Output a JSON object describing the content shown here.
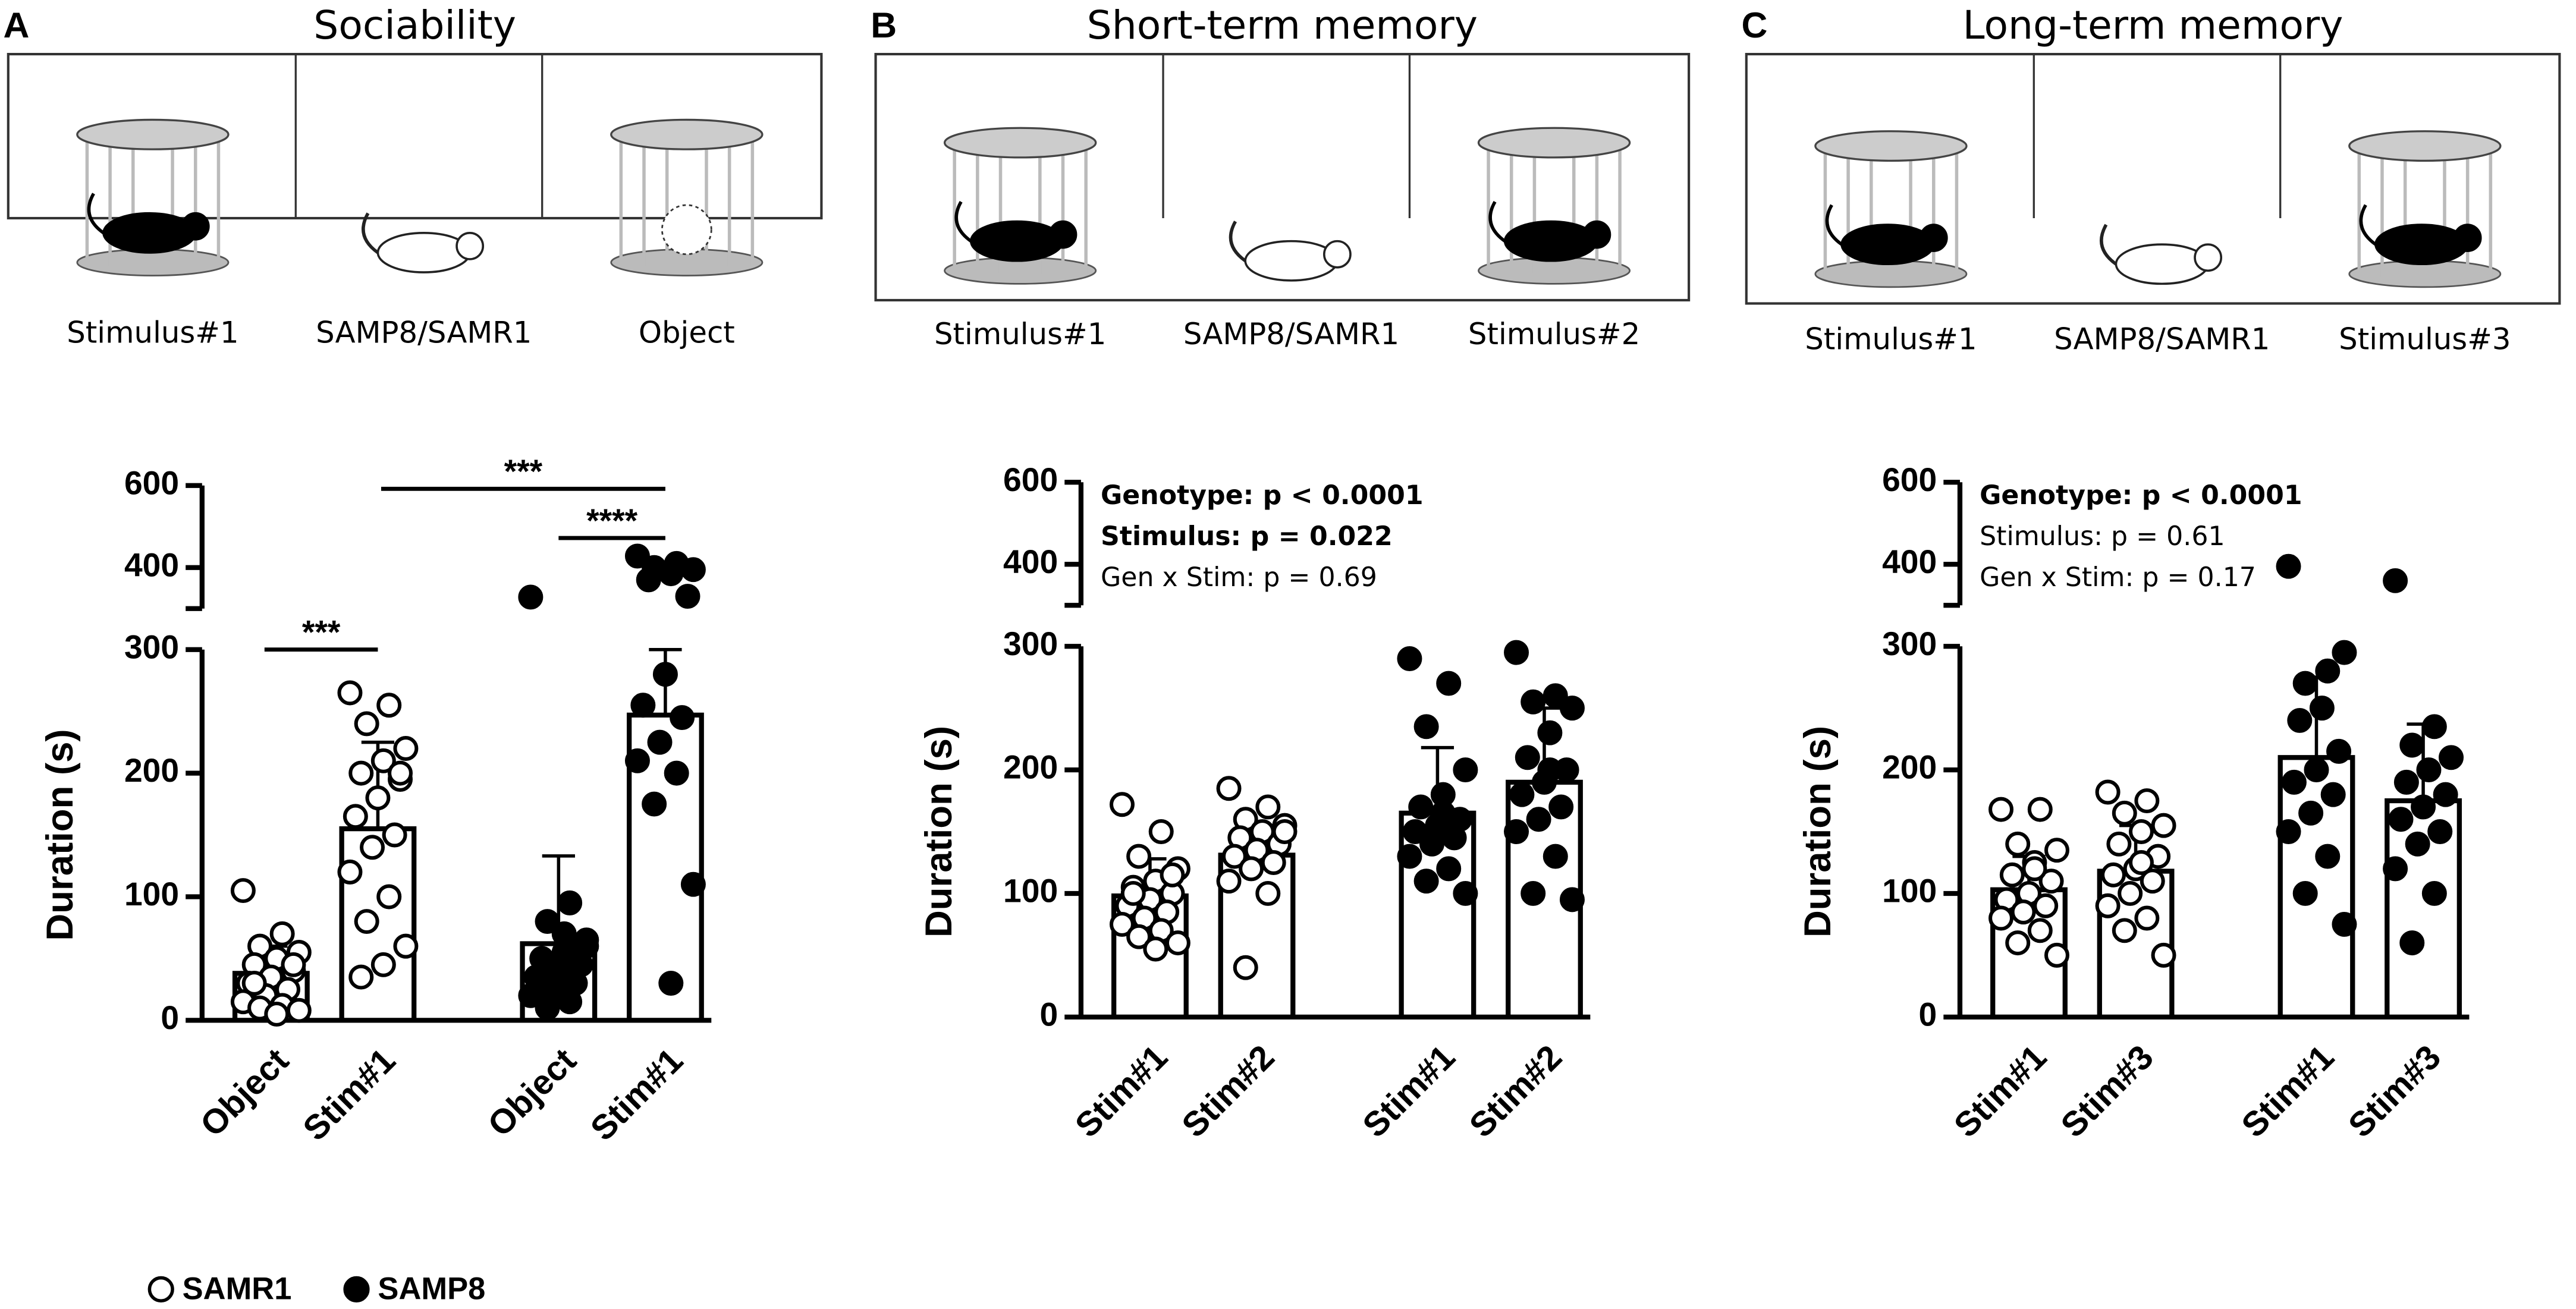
{
  "panels": [
    {
      "letter": "A",
      "title": "Sociability",
      "labels": [
        "Stimulus#1",
        "SAMP8/SAMR1",
        "Object"
      ]
    },
    {
      "letter": "B",
      "title": "Short-term memory",
      "labels": [
        "Stimulus#1",
        "SAMP8/SAMR1",
        "Stimulus#2"
      ]
    },
    {
      "letter": "C",
      "title": "Long-term memory",
      "labels": [
        "Stimulus#1",
        "SAMP8/SAMR1",
        "Stimulus#3"
      ]
    }
  ],
  "legend": [
    {
      "name": "SAMR1",
      "fill": "#ffffff"
    },
    {
      "name": "SAMP8",
      "fill": "#000000"
    }
  ],
  "chart_data": [
    {
      "type": "bar",
      "y_label": "Duration (s)",
      "categories": [
        "Object",
        "Stim#1",
        "Object",
        "Stim#1"
      ],
      "values": [
        38,
        155,
        62,
        247
      ],
      "errors": [
        22,
        70,
        71,
        53
      ],
      "point_fills": [
        "#ffffff",
        "#ffffff",
        "#000000",
        "#000000"
      ],
      "points": [
        [
          105,
          70,
          60,
          55,
          50,
          45,
          40,
          35,
          30,
          25,
          20,
          15,
          12,
          10,
          8,
          5,
          30,
          45
        ],
        [
          265,
          255,
          240,
          220,
          210,
          200,
          195,
          180,
          165,
          150,
          140,
          120,
          100,
          80,
          60,
          45,
          35,
          200
        ],
        [
          328,
          95,
          80,
          65,
          55,
          50,
          45,
          40,
          35,
          30,
          25,
          20,
          15,
          10,
          60,
          70
        ],
        [
          428,
          410,
          400,
          395,
          385,
          370,
          330,
          280,
          255,
          245,
          225,
          210,
          200,
          175,
          110,
          30
        ]
      ],
      "ylim": [
        0,
        300
      ],
      "yticks": [
        0,
        100,
        200,
        300
      ],
      "ylim_upper": [
        300,
        600
      ],
      "yticks_upper": [
        400,
        600
      ],
      "significance": [
        "***",
        "***",
        "****"
      ]
    },
    {
      "type": "bar",
      "y_label": "Duration (s)",
      "categories": [
        "Stim#1",
        "Stim#2",
        "Stim#1",
        "Stim#2"
      ],
      "values": [
        98,
        131,
        165,
        190
      ],
      "errors": [
        30,
        24,
        53,
        60
      ],
      "point_fills": [
        "#ffffff",
        "#ffffff",
        "#000000",
        "#000000"
      ],
      "points": [
        [
          172,
          150,
          130,
          120,
          110,
          105,
          100,
          95,
          90,
          85,
          80,
          75,
          70,
          65,
          60,
          55,
          100,
          115
        ],
        [
          185,
          170,
          160,
          155,
          150,
          145,
          140,
          135,
          130,
          125,
          120,
          110,
          100,
          40,
          150
        ],
        [
          290,
          270,
          235,
          200,
          180,
          170,
          160,
          155,
          150,
          145,
          140,
          130,
          120,
          110,
          100,
          165
        ],
        [
          295,
          260,
          255,
          250,
          230,
          210,
          200,
          190,
          180,
          170,
          160,
          150,
          130,
          100,
          95,
          200
        ]
      ],
      "ylim": [
        0,
        300
      ],
      "yticks": [
        0,
        100,
        200,
        300
      ],
      "ylim_upper": [
        300,
        600
      ],
      "yticks_upper": [
        400,
        600
      ],
      "stats": [
        {
          "text": "Genotype: p < 0.0001",
          "bold": true
        },
        {
          "text": "Stimulus: p = 0.022",
          "bold": true
        },
        {
          "text": "Gen x Stim: p = 0.69",
          "bold": false
        }
      ]
    },
    {
      "type": "bar",
      "y_label": "Duration (s)",
      "categories": [
        "Stim#1",
        "Stim#3",
        "Stim#1",
        "Stim#3"
      ],
      "values": [
        103,
        118,
        210,
        175
      ],
      "errors": [
        27,
        37,
        65,
        62
      ],
      "point_fills": [
        "#ffffff",
        "#ffffff",
        "#000000",
        "#000000"
      ],
      "points": [
        [
          168,
          168,
          140,
          135,
          125,
          115,
          110,
          100,
          95,
          90,
          85,
          80,
          70,
          60,
          50,
          120
        ],
        [
          182,
          175,
          165,
          155,
          150,
          140,
          130,
          120,
          115,
          110,
          100,
          90,
          80,
          70,
          50,
          125
        ],
        [
          395,
          280,
          270,
          295,
          250,
          240,
          215,
          200,
          190,
          180,
          165,
          150,
          130,
          100,
          75
        ],
        [
          360,
          235,
          220,
          210,
          200,
          190,
          180,
          170,
          160,
          150,
          140,
          120,
          100,
          60
        ]
      ],
      "ylim": [
        0,
        300
      ],
      "yticks": [
        0,
        100,
        200,
        300
      ],
      "ylim_upper": [
        300,
        600
      ],
      "yticks_upper": [
        400,
        600
      ],
      "stats": [
        {
          "text": "Genotype: p < 0.0001",
          "bold": true
        },
        {
          "text": "Stimulus: p = 0.61",
          "bold": false
        },
        {
          "text": "Gen x Stim: p = 0.17",
          "bold": false
        }
      ]
    }
  ]
}
